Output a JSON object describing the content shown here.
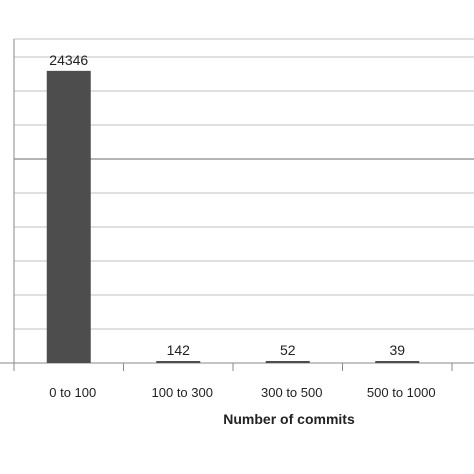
{
  "chart_data": {
    "type": "bar",
    "categories": [
      "0 to 100",
      "100 to 300",
      "300 to 500",
      "500 to 1000"
    ],
    "values": [
      24346,
      142,
      52,
      39
    ],
    "data_labels": [
      "24346",
      "142",
      "52",
      "39"
    ],
    "title": "",
    "xlabel": "Number of commits",
    "ylabel": "",
    "ylim": [
      0,
      27000
    ],
    "grid": true,
    "legend": "none",
    "bar_color": "#4d4d4d"
  }
}
